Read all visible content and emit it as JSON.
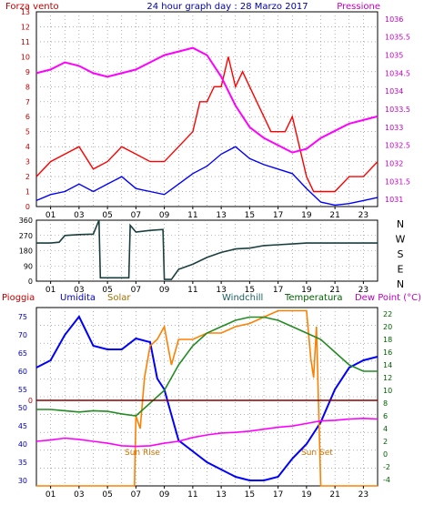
{
  "chart_data": [
    {
      "type": "line",
      "title": "24 hour graph day : 28 Marzo 2017",
      "left_label": "Forza vento",
      "right_label": "Pressione",
      "y_left": {
        "ticks": [
          "0",
          "1",
          "2",
          "3",
          "4",
          "5",
          "6",
          "7",
          "8",
          "9",
          "10",
          "11",
          "12",
          "13"
        ],
        "lim": [
          0,
          13
        ]
      },
      "y_right": {
        "ticks": [
          "1031",
          "1031.5",
          "1032",
          "1032.5",
          "1033",
          "1033.5",
          "1034",
          "1034.5",
          "1035",
          "1035.5",
          "1036"
        ],
        "lim": [
          1030.8,
          1036.2
        ]
      },
      "x_ticks": [
        "01",
        "03",
        "05",
        "07",
        "09",
        "11",
        "13",
        "15",
        "17",
        "19",
        "21",
        "23"
      ],
      "grid": true,
      "series": [
        {
          "color": "#ff0000",
          "axis": "left",
          "x": [
            0,
            1,
            2,
            3,
            4,
            5,
            6,
            7,
            8,
            9,
            10,
            11,
            11.5,
            12,
            12.5,
            13,
            13.5,
            14,
            14.5,
            15,
            15.5,
            16,
            16.5,
            17,
            17.5,
            18,
            18.5,
            19,
            19.5,
            20,
            21,
            22,
            23,
            24
          ],
          "values": [
            2,
            3,
            3.5,
            4,
            2.5,
            3,
            4,
            3.5,
            3,
            3,
            4,
            5,
            7,
            7,
            8,
            8,
            10,
            8,
            9,
            8,
            7,
            6,
            5,
            5,
            5,
            6,
            4,
            2,
            1,
            1,
            1,
            2,
            2,
            3
          ]
        },
        {
          "color": "#0000ff",
          "axis": "left",
          "x": [
            0,
            1,
            2,
            3,
            4,
            5,
            6,
            7,
            8,
            9,
            10,
            11,
            12,
            13,
            14,
            15,
            16,
            17,
            18,
            19,
            20,
            21,
            22,
            23,
            24
          ],
          "values": [
            0.4,
            0.8,
            1,
            1.5,
            1,
            1.5,
            2,
            1.2,
            1,
            0.8,
            1.5,
            2.2,
            2.7,
            3.5,
            4,
            3.2,
            2.8,
            2.5,
            2.2,
            1.2,
            0.3,
            0.1,
            0.2,
            0.4,
            0.6
          ]
        },
        {
          "color": "#ff00ff",
          "axis": "right",
          "x": [
            0,
            1,
            2,
            3,
            4,
            5,
            6,
            7,
            8,
            9,
            10,
            11,
            12,
            13,
            14,
            15,
            16,
            17,
            18,
            19,
            20,
            21,
            22,
            23,
            24
          ],
          "values": [
            1034.5,
            1034.6,
            1034.8,
            1034.7,
            1034.5,
            1034.4,
            1034.5,
            1034.6,
            1034.8,
            1035,
            1035.1,
            1035.2,
            1035,
            1034.4,
            1033.6,
            1033,
            1032.7,
            1032.5,
            1032.3,
            1032.4,
            1032.7,
            1032.9,
            1033.1,
            1033.2,
            1033.3
          ]
        }
      ]
    },
    {
      "type": "line",
      "y_ticks": [
        "0",
        "90",
        "180",
        "270",
        "360"
      ],
      "ylim": [
        0,
        360
      ],
      "right_labels": [
        "N",
        "W",
        "S",
        "E",
        "N"
      ],
      "x_ticks": [
        "01",
        "03",
        "05",
        "07",
        "09",
        "11",
        "13",
        "15",
        "17",
        "19",
        "21",
        "23"
      ],
      "grid": true,
      "series": [
        {
          "color": "#1a3f3f",
          "x": [
            0,
            1,
            1.6,
            2,
            3,
            4,
            4.4,
            4.5,
            5,
            6,
            6.5,
            6.6,
            7,
            8,
            8.9,
            9,
            9.5,
            10,
            11,
            12,
            13,
            14,
            15,
            16,
            17,
            18,
            19,
            20,
            21,
            22,
            23,
            24
          ],
          "values": [
            225,
            225,
            230,
            270,
            275,
            278,
            360,
            20,
            20,
            20,
            20,
            330,
            290,
            300,
            305,
            10,
            10,
            70,
            100,
            140,
            170,
            190,
            195,
            210,
            215,
            220,
            225,
            225,
            225,
            225,
            225,
            225
          ]
        }
      ]
    },
    {
      "type": "line",
      "legend": [
        "Pioggia",
        "Umidita",
        "Solar",
        "Windchill",
        "Temperatura",
        "Dew Point (°C)"
      ],
      "y_left": {
        "ticks": [
          "30",
          "35",
          "40",
          "45",
          "50",
          "55",
          "60",
          "65",
          "70",
          "75"
        ],
        "lim": [
          28.5,
          77.5
        ]
      },
      "y_right": {
        "ticks": [
          "-4",
          "-2",
          "0",
          "2",
          "4",
          "6",
          "8",
          "10",
          "12",
          "14",
          "16",
          "18",
          "20",
          "22"
        ],
        "lim": [
          -5,
          23
        ]
      },
      "left_extra_tick": "0",
      "x_ticks": [
        "01",
        "03",
        "05",
        "07",
        "09",
        "11",
        "13",
        "15",
        "17",
        "19",
        "21",
        "23"
      ],
      "annotations": [
        "Sun Rise",
        "Sun Set"
      ],
      "grid": true,
      "series": [
        {
          "color": "#0000ff",
          "axis": "left",
          "x": [
            0,
            1,
            2,
            3,
            4,
            5,
            6,
            7,
            8,
            8.5,
            9,
            9.5,
            10,
            11,
            12,
            13,
            14,
            15,
            16,
            17,
            18,
            19,
            20,
            21,
            22,
            23,
            24
          ],
          "values": [
            61,
            63,
            70,
            75,
            67,
            66,
            66,
            69,
            68,
            58,
            55,
            48,
            41,
            38,
            35,
            33,
            31,
            30,
            30,
            31,
            36,
            40,
            46,
            55,
            61,
            63,
            64
          ]
        },
        {
          "color": "#ff8000",
          "axis": "right",
          "x": [
            0,
            6.9,
            7,
            7.3,
            7.6,
            8,
            8.5,
            9,
            9.5,
            10,
            11,
            12,
            13,
            14,
            15,
            16,
            17,
            18,
            18.5,
            19,
            19.3,
            19.5,
            19.7,
            20,
            24
          ],
          "values": [
            -5,
            -5,
            6,
            4,
            12,
            17,
            18,
            20,
            14,
            18,
            18,
            19,
            19,
            20,
            20.5,
            21.5,
            22.5,
            22.5,
            22.5,
            22.5,
            15,
            12,
            20,
            -5,
            -5
          ]
        },
        {
          "color": "#228b22",
          "axis": "right",
          "x": [
            0,
            1,
            2,
            3,
            4,
            5,
            6,
            7,
            8,
            9,
            10,
            11,
            12,
            13,
            14,
            15,
            16,
            17,
            18,
            19,
            20,
            21,
            22,
            23,
            24
          ],
          "values": [
            7,
            7,
            6.8,
            6.6,
            6.8,
            6.7,
            6.3,
            6,
            8,
            10,
            14,
            17,
            19,
            20,
            21,
            21.5,
            21.5,
            21,
            20,
            19,
            18,
            16,
            14,
            13,
            13
          ]
        },
        {
          "color": "#ff00ff",
          "axis": "right",
          "x": [
            0,
            1,
            2,
            3,
            4,
            5,
            6,
            7,
            8,
            9,
            10,
            11,
            12,
            13,
            14,
            15,
            16,
            17,
            18,
            19,
            20,
            21,
            22,
            23,
            24
          ],
          "values": [
            2,
            2.2,
            2.5,
            2.3,
            2,
            1.7,
            1.3,
            1.2,
            1.3,
            1.7,
            2,
            2.6,
            3,
            3.3,
            3.4,
            3.6,
            3.9,
            4.2,
            4.4,
            4.8,
            5.2,
            5.3,
            5.5,
            5.6,
            5.5
          ]
        },
        {
          "color": "#8b0000",
          "axis": "left",
          "x": [
            0,
            24
          ],
          "values": [
            52,
            52
          ]
        }
      ]
    }
  ]
}
